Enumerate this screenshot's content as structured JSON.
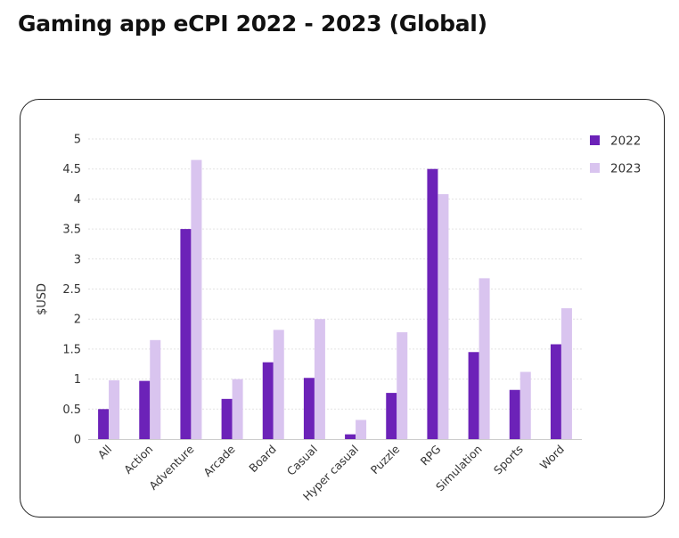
{
  "page": {
    "title": "Gaming app eCPI 2022 - 2023 (Global)"
  },
  "colors": {
    "series_2022": "#6c22b8",
    "series_2023": "#d9c4ef",
    "grid": "#e3e3e3",
    "card_border": "#222222"
  },
  "chart_data": {
    "type": "bar",
    "title": "Gaming app eCPI 2022 - 2023 (Global)",
    "xlabel": "",
    "ylabel": "$USD",
    "ylim": [
      0,
      5
    ],
    "yticks": [
      0,
      0.5,
      1,
      1.5,
      2,
      2.5,
      3,
      3.5,
      4,
      4.5,
      5
    ],
    "ytick_labels": [
      "0",
      "0.5",
      "1",
      "1.5",
      "2",
      "2.5",
      "3",
      "3.5",
      "4",
      "4.5",
      "5"
    ],
    "grid": true,
    "legend_position": "top-right",
    "categories": [
      "All",
      "Action",
      "Adventure",
      "Arcade",
      "Board",
      "Casual",
      "Hyper casual",
      "Puzzle",
      "RPG",
      "Simulation",
      "Sports",
      "Word"
    ],
    "series": [
      {
        "name": "2022",
        "color": "#6c22b8",
        "values": [
          0.5,
          0.97,
          3.5,
          0.67,
          1.28,
          1.02,
          0.08,
          0.77,
          4.5,
          1.45,
          0.82,
          1.58
        ]
      },
      {
        "name": "2023",
        "color": "#d9c4ef",
        "values": [
          0.98,
          1.65,
          4.65,
          1.0,
          1.82,
          2.0,
          0.32,
          1.78,
          4.08,
          2.68,
          1.12,
          2.18
        ]
      }
    ]
  }
}
